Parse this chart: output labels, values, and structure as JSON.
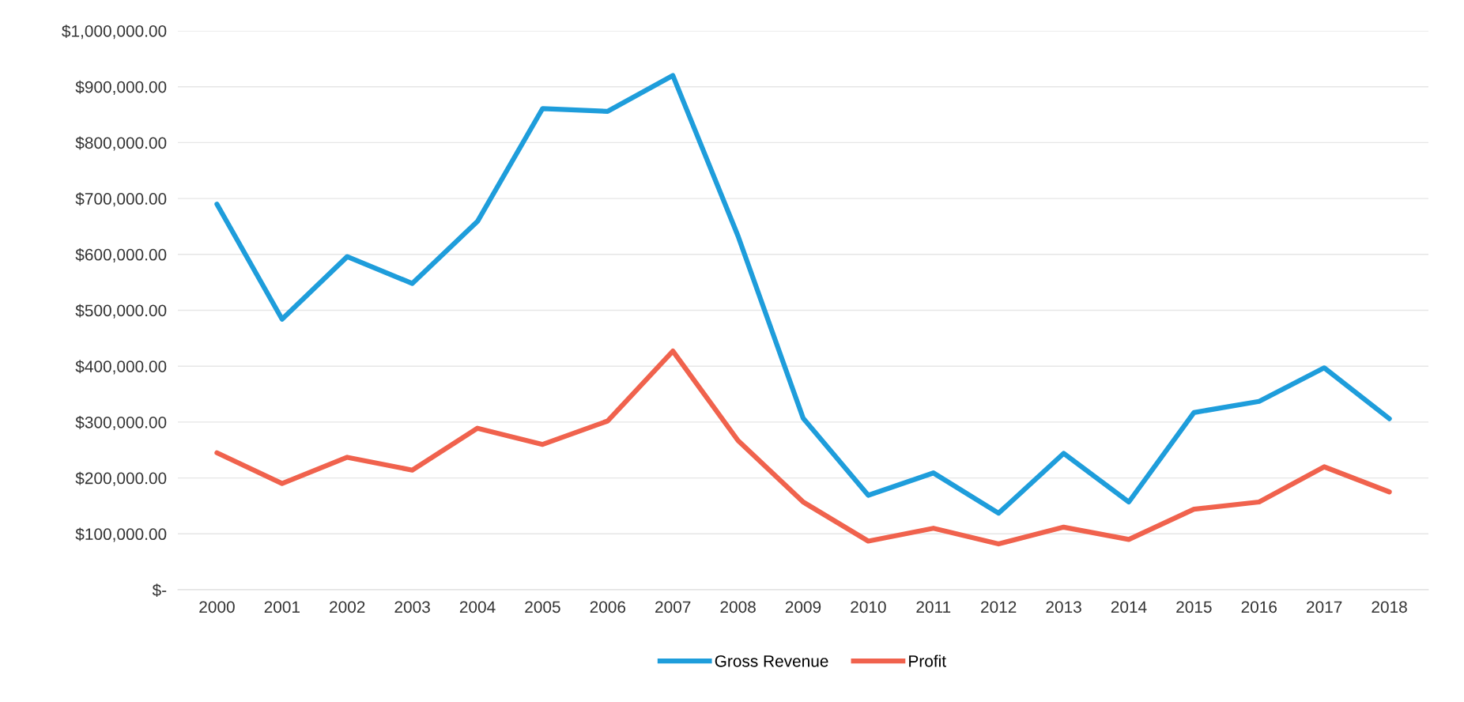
{
  "chart_data": {
    "type": "line",
    "categories": [
      "2000",
      "2001",
      "2002",
      "2003",
      "2004",
      "2005",
      "2006",
      "2007",
      "2008",
      "2009",
      "2010",
      "2011",
      "2012",
      "2013",
      "2014",
      "2015",
      "2016",
      "2017",
      "2018"
    ],
    "series": [
      {
        "name": "Gross Revenue",
        "color": "#1e9ddb",
        "values": [
          690000,
          484000,
          596000,
          548000,
          659000,
          861000,
          856000,
          920000,
          633000,
          307000,
          169000,
          209000,
          137000,
          244000,
          157000,
          317000,
          337000,
          397000,
          306000
        ]
      },
      {
        "name": "Profit",
        "color": "#f0624d",
        "values": [
          245000,
          190000,
          237000,
          214000,
          289000,
          260000,
          302000,
          427000,
          267000,
          157000,
          87000,
          110000,
          82000,
          112000,
          90000,
          144000,
          157000,
          220000,
          175000
        ]
      }
    ],
    "ylim": [
      0,
      1000000
    ],
    "yticks": [
      {
        "value": 0,
        "label": "$-"
      },
      {
        "value": 100000,
        "label": "$100,000.00"
      },
      {
        "value": 200000,
        "label": "$200,000.00"
      },
      {
        "value": 300000,
        "label": "$300,000.00"
      },
      {
        "value": 400000,
        "label": "$400,000.00"
      },
      {
        "value": 500000,
        "label": "$500,000.00"
      },
      {
        "value": 600000,
        "label": "$600,000.00"
      },
      {
        "value": 700000,
        "label": "$700,000.00"
      },
      {
        "value": 800000,
        "label": "$800,000.00"
      },
      {
        "value": 900000,
        "label": "$900,000.00"
      },
      {
        "value": 1000000,
        "label": "$1,000,000.00"
      }
    ],
    "grid": "y",
    "legend": "bottom",
    "marker": "none",
    "line_style": "solid"
  }
}
